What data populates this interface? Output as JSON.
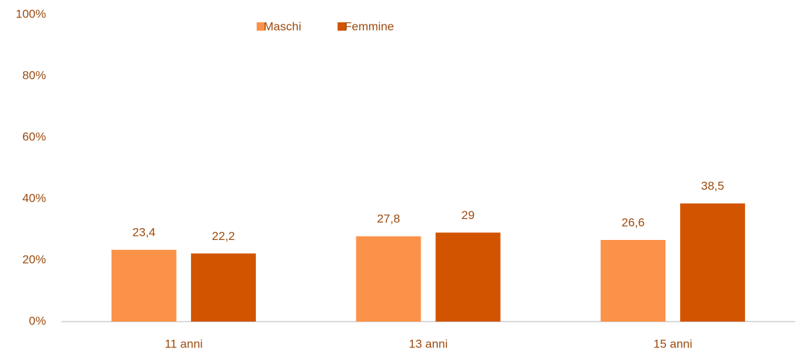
{
  "chart_data": {
    "type": "bar",
    "categories": [
      "11 anni",
      "13 anni",
      "15 anni"
    ],
    "series": [
      {
        "name": "Maschi",
        "color": "#fb9249",
        "values": [
          23.4,
          27.8,
          26.6
        ],
        "value_labels": [
          "23,4",
          "27,8",
          "26,6"
        ]
      },
      {
        "name": "Femmine",
        "color": "#d25400",
        "values": [
          22.2,
          29,
          38.5
        ],
        "value_labels": [
          "22,2",
          "29",
          "38,5"
        ]
      }
    ],
    "ylim": [
      0,
      100
    ],
    "yticks": [
      {
        "value": 0,
        "label": "0%"
      },
      {
        "value": 20,
        "label": "20%"
      },
      {
        "value": 40,
        "label": "40%"
      },
      {
        "value": 60,
        "label": "60%"
      },
      {
        "value": 80,
        "label": "80%"
      },
      {
        "value": 100,
        "label": "100%"
      }
    ],
    "grid": false,
    "legend": "top"
  }
}
